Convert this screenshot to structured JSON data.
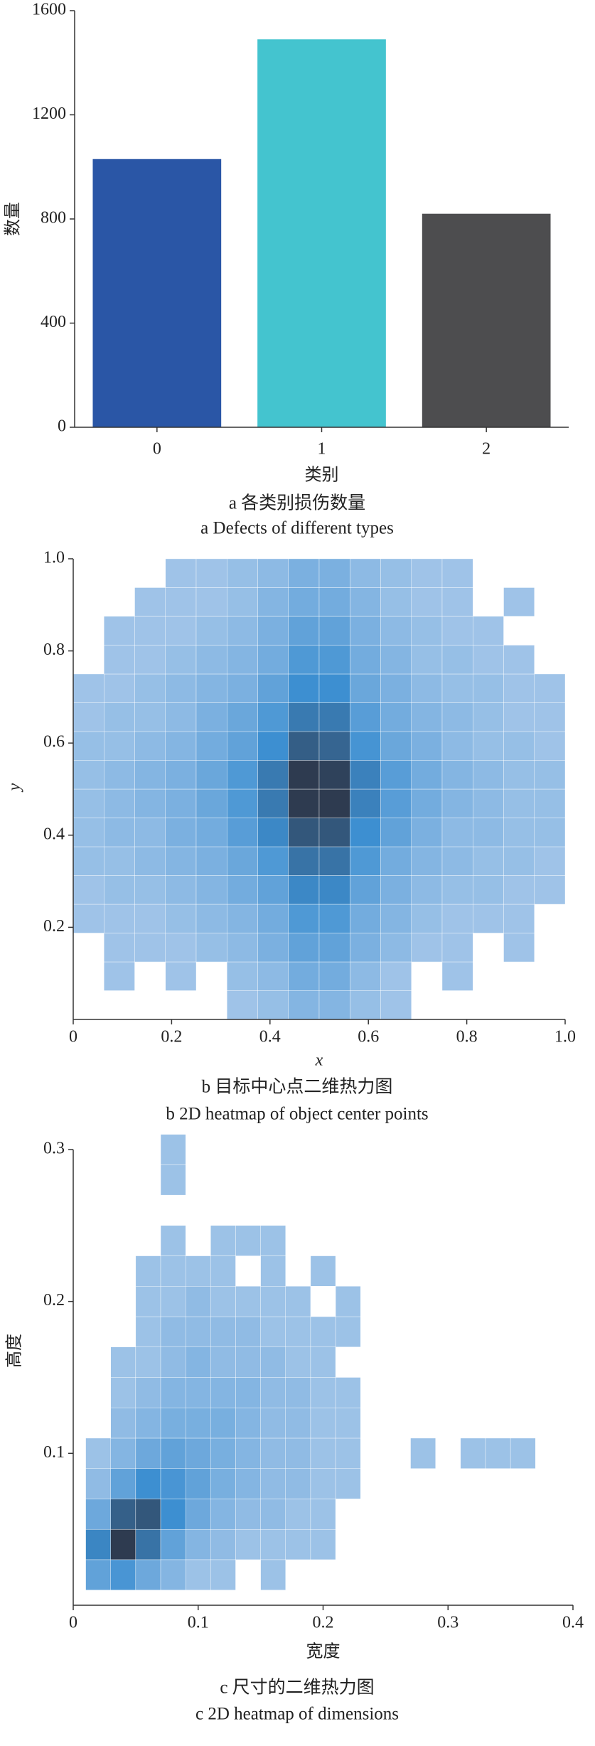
{
  "chart_data": [
    {
      "type": "bar",
      "caption": "a 各类别损伤数量",
      "caption_en": "a  Defects of different types",
      "xlabel": "类别",
      "ylabel": "数量",
      "categories": [
        "0",
        "1",
        "2"
      ],
      "values": [
        1030,
        1490,
        820
      ],
      "colors": [
        "#2a56a6",
        "#44c4cf",
        "#4d4d4f"
      ],
      "ylim": [
        0,
        1600
      ],
      "yticks": [
        0,
        400,
        800,
        1200,
        1600
      ]
    },
    {
      "type": "heatmap",
      "caption": "b 目标中心点二维热力图",
      "caption_en": "b  2D heatmap of object center points",
      "xlabel": "x",
      "ylabel": "y",
      "xlim": [
        0,
        1
      ],
      "ylim": [
        0,
        1
      ],
      "xticks": [
        0,
        0.2,
        0.4,
        0.6,
        0.8,
        {
          "value": 1,
          "label": "1.0"
        }
      ],
      "yticks": [
        0.2,
        0.4,
        0.6,
        0.8,
        {
          "value": 1,
          "label": "1.0"
        }
      ],
      "cmap": [
        "#a8c8ea",
        "#3d8fd1",
        "#2e3b50"
      ],
      "xbins": [
        0,
        0.0625,
        0.125,
        0.1875,
        0.25,
        0.3125,
        0.375,
        0.4375,
        0.5,
        0.5625,
        0.625,
        0.6875,
        0.75,
        0.8125,
        0.875,
        0.9375,
        1
      ],
      "ybins": [
        0,
        0.0625,
        0.125,
        0.1875,
        0.25,
        0.3125,
        0.375,
        0.4375,
        0.5,
        0.5625,
        0.625,
        0.6875,
        0.75,
        0.8125,
        0.875,
        0.9375,
        1
      ],
      "counts": [
        [
          0,
          0,
          0,
          0,
          0,
          1,
          2,
          4,
          4,
          2,
          1,
          0,
          0,
          0,
          0,
          0
        ],
        [
          0,
          1,
          0,
          1,
          0,
          2,
          3,
          6,
          6,
          3,
          1,
          0,
          1,
          0,
          0,
          0
        ],
        [
          0,
          1,
          1,
          1,
          2,
          3,
          5,
          8,
          8,
          5,
          3,
          1,
          1,
          0,
          1,
          0
        ],
        [
          1,
          1,
          1,
          2,
          3,
          4,
          6,
          10,
          10,
          6,
          4,
          2,
          1,
          1,
          1,
          0
        ],
        [
          1,
          2,
          2,
          3,
          4,
          6,
          8,
          13,
          13,
          8,
          5,
          3,
          2,
          2,
          1,
          1
        ],
        [
          2,
          2,
          3,
          4,
          5,
          7,
          10,
          16,
          16,
          10,
          6,
          4,
          3,
          2,
          2,
          1
        ],
        [
          2,
          3,
          3,
          5,
          6,
          9,
          13,
          20,
          20,
          12,
          8,
          5,
          3,
          3,
          2,
          2
        ],
        [
          2,
          3,
          4,
          5,
          7,
          10,
          15,
          24,
          24,
          14,
          9,
          6,
          4,
          3,
          2,
          2
        ],
        [
          2,
          3,
          4,
          5,
          7,
          10,
          15,
          24,
          23,
          14,
          9,
          6,
          4,
          3,
          2,
          2
        ],
        [
          2,
          2,
          3,
          4,
          6,
          8,
          12,
          19,
          18,
          11,
          7,
          5,
          3,
          2,
          2,
          1
        ],
        [
          1,
          2,
          2,
          3,
          5,
          7,
          10,
          15,
          15,
          9,
          6,
          4,
          3,
          2,
          1,
          1
        ],
        [
          1,
          1,
          2,
          3,
          4,
          5,
          8,
          12,
          12,
          7,
          5,
          3,
          2,
          2,
          1,
          1
        ],
        [
          0,
          1,
          1,
          2,
          3,
          4,
          6,
          10,
          10,
          6,
          4,
          2,
          2,
          1,
          1,
          0
        ],
        [
          0,
          1,
          1,
          1,
          2,
          3,
          5,
          8,
          8,
          5,
          3,
          2,
          1,
          1,
          0,
          0
        ],
        [
          0,
          0,
          1,
          1,
          1,
          2,
          4,
          6,
          6,
          4,
          2,
          1,
          1,
          0,
          1,
          0
        ],
        [
          0,
          0,
          0,
          1,
          1,
          2,
          3,
          5,
          5,
          3,
          2,
          1,
          1,
          0,
          0,
          0
        ]
      ]
    },
    {
      "type": "heatmap",
      "caption": "c 尺寸的二维热力图",
      "caption_en": "c  2D heatmap of dimensions",
      "xlabel": "宽度",
      "ylabel": "高度",
      "xlim": [
        0,
        0.4
      ],
      "ylim": [
        0,
        0.3
      ],
      "xticks": [
        0,
        0.1,
        0.2,
        0.3,
        0.4
      ],
      "yticks": [
        0.1,
        0.2,
        0.3
      ],
      "cmap": [
        "#a8c8ea",
        "#3d8fd1",
        "#2e3b50"
      ],
      "xbins": [
        0.01,
        0.03,
        0.05,
        0.07,
        0.09,
        0.11,
        0.13,
        0.15,
        0.17,
        0.19,
        0.21,
        0.23,
        0.25,
        0.27,
        0.29,
        0.31,
        0.33,
        0.35,
        0.37,
        0.39
      ],
      "ybins": [
        0.01,
        0.03,
        0.05,
        0.07,
        0.09,
        0.11,
        0.13,
        0.15,
        0.17,
        0.19,
        0.21,
        0.23,
        0.25,
        0.27,
        0.29,
        0.31
      ],
      "counts": [
        [
          6,
          8,
          5,
          3,
          1,
          1,
          0,
          1,
          0,
          0,
          0,
          0,
          0,
          0,
          0,
          0,
          0,
          0,
          0
        ],
        [
          10,
          18,
          12,
          6,
          3,
          2,
          1,
          1,
          1,
          1,
          0,
          0,
          0,
          0,
          0,
          0,
          0,
          0,
          0
        ],
        [
          5,
          14,
          15,
          9,
          5,
          3,
          2,
          2,
          1,
          1,
          0,
          0,
          0,
          0,
          0,
          0,
          0,
          0,
          0
        ],
        [
          2,
          6,
          9,
          8,
          6,
          4,
          3,
          2,
          2,
          1,
          1,
          0,
          0,
          0,
          0,
          0,
          0,
          0,
          0
        ],
        [
          1,
          3,
          5,
          6,
          5,
          4,
          3,
          2,
          2,
          1,
          1,
          0,
          0,
          1,
          0,
          1,
          1,
          1,
          0
        ],
        [
          0,
          2,
          3,
          4,
          4,
          4,
          3,
          2,
          2,
          1,
          1,
          0,
          0,
          0,
          0,
          0,
          0,
          0,
          0
        ],
        [
          0,
          1,
          2,
          3,
          3,
          3,
          3,
          2,
          2,
          1,
          1,
          0,
          0,
          0,
          0,
          0,
          0,
          0,
          0
        ],
        [
          0,
          1,
          1,
          2,
          3,
          2,
          2,
          2,
          1,
          1,
          0,
          0,
          0,
          0,
          0,
          0,
          0,
          0,
          0
        ],
        [
          0,
          0,
          1,
          2,
          2,
          2,
          2,
          1,
          1,
          1,
          1,
          0,
          0,
          0,
          0,
          0,
          0,
          0,
          0
        ],
        [
          0,
          0,
          1,
          1,
          2,
          1,
          1,
          1,
          1,
          0,
          1,
          0,
          0,
          0,
          0,
          0,
          0,
          0,
          0
        ],
        [
          0,
          0,
          1,
          1,
          1,
          1,
          0,
          1,
          0,
          1,
          0,
          0,
          0,
          0,
          0,
          0,
          0,
          0,
          0
        ],
        [
          0,
          0,
          0,
          1,
          0,
          1,
          1,
          1,
          0,
          0,
          0,
          0,
          0,
          0,
          0,
          0,
          0,
          0,
          0
        ],
        [
          0,
          0,
          0,
          0,
          0,
          0,
          0,
          0,
          0,
          0,
          0,
          0,
          0,
          0,
          0,
          0,
          0,
          0,
          0
        ],
        [
          0,
          0,
          0,
          1,
          0,
          0,
          0,
          0,
          0,
          0,
          0,
          0,
          0,
          0,
          0,
          0,
          0,
          0,
          0
        ],
        [
          0,
          0,
          0,
          1,
          0,
          0,
          0,
          0,
          0,
          0,
          0,
          0,
          0,
          0,
          0,
          0,
          0,
          0,
          0
        ]
      ]
    }
  ]
}
